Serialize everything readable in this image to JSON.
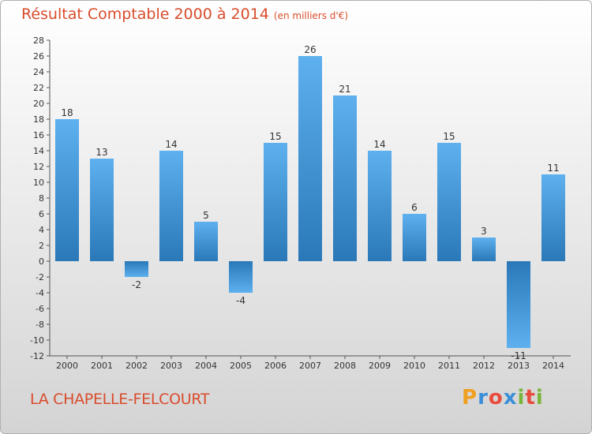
{
  "chart_data": {
    "type": "bar",
    "title": "Résultat Comptable 2000 à 2014",
    "subtitle": "(en milliers d'€)",
    "categories": [
      "2000",
      "2001",
      "2002",
      "2003",
      "2004",
      "2005",
      "2006",
      "2007",
      "2008",
      "2009",
      "2010",
      "2011",
      "2012",
      "2013",
      "2014"
    ],
    "values": [
      18,
      13,
      -2,
      14,
      5,
      -4,
      15,
      26,
      21,
      14,
      6,
      15,
      3,
      -11,
      11
    ],
    "ylim": [
      -12,
      28
    ],
    "ytick_step": 2,
    "grid": false,
    "xlabel": "",
    "ylabel": ""
  },
  "footer": {
    "commune": "LA CHAPELLE-FELCOURT",
    "brand_letters": [
      "P",
      "r",
      "o",
      "x",
      "i",
      "t",
      "i"
    ],
    "brand_colors": [
      "#f0a020",
      "#3a8fd8",
      "#e84c3c",
      "#3a8fd8",
      "#7ab53a",
      "#e84c3c",
      "#7ab53a"
    ]
  },
  "colors": {
    "bar_light": "#5aacea",
    "bar_dark": "#2a78b8",
    "title": "#d94c2c"
  }
}
